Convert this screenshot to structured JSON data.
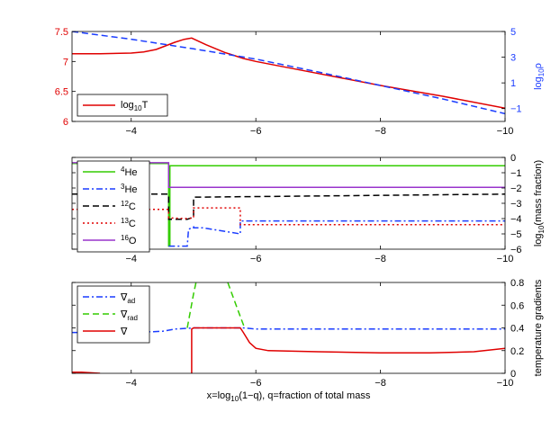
{
  "figure": {
    "xlabel_parts": [
      "x=log",
      "10",
      "(1−q), q=fraction of total mass"
    ],
    "x_ticks": [
      -4,
      -6,
      -8,
      -10
    ],
    "x_tick_labels": [
      "−4",
      "−6",
      "−8",
      "−10"
    ]
  },
  "chart_data": [
    {
      "type": "line",
      "panel": "top",
      "xlim": [
        -3.05,
        -10.0
      ],
      "ylim_left": [
        6.0,
        7.5
      ],
      "ylim_right": [
        -2.0,
        5.0
      ],
      "left_axis_color": "#e00000",
      "right_axis_color": "#1a3cff",
      "yticks_left": [
        6,
        6.5,
        7,
        7.5
      ],
      "ytick_labels_left": [
        "6",
        "6.5",
        "7",
        "7.5"
      ],
      "yticks_right": [
        -1,
        1,
        3,
        5
      ],
      "ytick_labels_right": [
        "−1",
        "1",
        "3",
        "5"
      ],
      "ylabel_right_parts": [
        "log",
        "10",
        "ρ"
      ],
      "legend": {
        "entries": [
          {
            "label_parts": [
              "log",
              "10",
              "T"
            ],
            "color": "#e00000",
            "style": "solid"
          }
        ]
      },
      "series": [
        {
          "name": "log10T",
          "axis": "left",
          "color": "#e00000",
          "style": "solid",
          "x": [
            -3.05,
            -3.5,
            -4.0,
            -4.2,
            -4.4,
            -4.55,
            -4.7,
            -4.85,
            -4.97,
            -5.2,
            -5.5,
            -5.8,
            -6.0,
            -7.0,
            -8.0,
            -9.0,
            -10.0
          ],
          "y": [
            7.13,
            7.13,
            7.14,
            7.16,
            7.2,
            7.26,
            7.32,
            7.37,
            7.39,
            7.28,
            7.15,
            7.05,
            7.0,
            6.8,
            6.6,
            6.42,
            6.22
          ]
        },
        {
          "name": "log10rho",
          "axis": "right",
          "color": "#1a3cff",
          "style": "dashed",
          "x": [
            -3.05,
            -4.0,
            -5.0,
            -6.0,
            -7.0,
            -8.0,
            -9.0,
            -10.0
          ],
          "y": [
            5.0,
            4.4,
            3.65,
            2.85,
            1.85,
            0.8,
            -0.25,
            -1.4
          ]
        }
      ]
    },
    {
      "type": "line",
      "panel": "middle",
      "xlim": [
        -3.05,
        -10.0
      ],
      "ylim": [
        -6,
        0
      ],
      "yticks": [
        -6,
        -5,
        -4,
        -3,
        -2,
        -1,
        0
      ],
      "ytick_labels": [
        "−6",
        "−5",
        "−4",
        "−3",
        "−2",
        "−1",
        "0"
      ],
      "ylabel_parts": [
        "log",
        "10",
        "(mass fraction)"
      ],
      "legend": {
        "entries": [
          {
            "sup": "4",
            "label": "He",
            "color": "#33cc00",
            "style": "solid"
          },
          {
            "sup": "3",
            "label": "He",
            "color": "#1a3cff",
            "style": "dashdot"
          },
          {
            "sup": "12",
            "label": "C",
            "color": "#000000",
            "style": "dashed"
          },
          {
            "sup": "13",
            "label": "C",
            "color": "#e00000",
            "style": "dotted"
          },
          {
            "sup": "16",
            "label": "O",
            "color": "#9933cc",
            "style": "solid"
          }
        ]
      },
      "series": [
        {
          "name": "4He",
          "color": "#33cc00",
          "style": "solid",
          "x": [
            -3.05,
            -4.6,
            -4.6,
            -4.62,
            -4.62,
            -10.0
          ],
          "y": [
            -0.4,
            -0.4,
            -5.8,
            -5.8,
            -0.55,
            -0.55
          ]
        },
        {
          "name": "3He",
          "color": "#1a3cff",
          "style": "dashdot",
          "x": [
            -4.6,
            -4.9,
            -4.92,
            -5.0,
            -5.0,
            -5.15,
            -5.75,
            -5.75,
            -10.0
          ],
          "y": [
            -5.8,
            -5.8,
            -4.7,
            -4.55,
            -4.6,
            -4.6,
            -5.0,
            -4.15,
            -4.15
          ]
        },
        {
          "name": "12C",
          "color": "#000000",
          "style": "dashed",
          "x": [
            -3.05,
            -4.6,
            -4.6,
            -4.9,
            -5.0,
            -5.0,
            -10.0
          ],
          "y": [
            -2.4,
            -2.4,
            -4.05,
            -4.05,
            -3.9,
            -2.6,
            -2.4
          ]
        },
        {
          "name": "13C",
          "color": "#e00000",
          "style": "dotted",
          "x": [
            -3.05,
            -4.6,
            -4.6,
            -4.9,
            -5.0,
            -5.0,
            -5.75,
            -5.75,
            -10.0
          ],
          "y": [
            -3.4,
            -3.4,
            -3.95,
            -4.0,
            -3.95,
            -3.3,
            -3.3,
            -4.4,
            -4.4
          ]
        },
        {
          "name": "16O",
          "color": "#9933cc",
          "style": "solid",
          "x": [
            -3.05,
            -4.6,
            -4.6,
            -10.0
          ],
          "y": [
            -0.35,
            -0.35,
            -1.95,
            -1.95
          ]
        }
      ]
    },
    {
      "type": "line",
      "panel": "bottom",
      "xlim": [
        -3.05,
        -10.0
      ],
      "ylim": [
        0.0,
        0.8
      ],
      "yticks": [
        0,
        0.2,
        0.4,
        0.6,
        0.8
      ],
      "ytick_labels": [
        "0",
        "0.2",
        "0.4",
        "0.6",
        "0.8"
      ],
      "ylabel": "temperature gradients",
      "legend": {
        "entries": [
          {
            "label": "∇",
            "sub": "ad",
            "color": "#1a3cff",
            "style": "dashdot"
          },
          {
            "label": "∇",
            "sub": "rad",
            "color": "#33cc00",
            "style": "dashed"
          },
          {
            "label": "∇",
            "sub": "",
            "color": "#e00000",
            "style": "solid"
          }
        ]
      },
      "series": [
        {
          "name": "nabla_ad",
          "color": "#1a3cff",
          "style": "dashdot",
          "x": [
            -3.05,
            -4.0,
            -4.5,
            -4.7,
            -5.0,
            -5.8,
            -6.0,
            -10.0
          ],
          "y": [
            0.36,
            0.36,
            0.37,
            0.39,
            0.4,
            0.4,
            0.39,
            0.39
          ]
        },
        {
          "name": "nabla_rad_a",
          "color": "#33cc00",
          "style": "dashed",
          "x": [
            -4.9,
            -4.95,
            -5.0,
            -5.04
          ],
          "y": [
            0.4,
            0.55,
            0.7,
            0.8
          ]
        },
        {
          "name": "nabla_rad_b",
          "color": "#33cc00",
          "style": "dashed",
          "x": [
            -5.55,
            -5.65,
            -5.75,
            -5.82
          ],
          "y": [
            0.8,
            0.65,
            0.5,
            0.4
          ]
        },
        {
          "name": "nabla_a",
          "color": "#e00000",
          "style": "solid",
          "x": [
            -3.05,
            -3.2,
            -3.5
          ],
          "y": [
            0.01,
            0.01,
            0.0
          ]
        },
        {
          "name": "nabla_b",
          "color": "#e00000",
          "style": "solid",
          "x": [
            -4.97,
            -4.97,
            -5.0,
            -5.75,
            -5.8,
            -5.9,
            -6.0,
            -6.2,
            -7.0,
            -8.0,
            -8.8,
            -9.5,
            -10.0
          ],
          "y": [
            0.0,
            0.39,
            0.4,
            0.4,
            0.36,
            0.27,
            0.22,
            0.2,
            0.19,
            0.18,
            0.18,
            0.19,
            0.22
          ]
        }
      ]
    }
  ]
}
